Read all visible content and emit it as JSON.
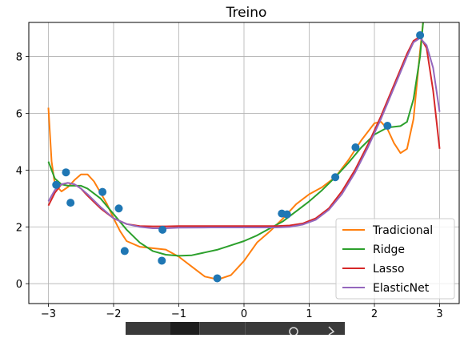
{
  "chart_data": {
    "type": "line",
    "title": "Treino",
    "xlabel": "",
    "ylabel": "",
    "xlim": [
      -3.3,
      3.3
    ],
    "ylim": [
      -0.7,
      9.2
    ],
    "xticks": [
      -3,
      -2,
      -1,
      0,
      1,
      2,
      3
    ],
    "xtick_labels": [
      "−3",
      "−2",
      "−1",
      "0",
      "1",
      "2",
      "3"
    ],
    "yticks": [
      0,
      2,
      4,
      6,
      8
    ],
    "ytick_labels": [
      "0",
      "2",
      "4",
      "6",
      "8"
    ],
    "grid": true,
    "legend_position": "lower-right",
    "scatter": {
      "color": "#1f77b4",
      "x": [
        -2.88,
        -2.73,
        -2.66,
        -2.17,
        -1.92,
        -1.83,
        -1.26,
        -1.25,
        -0.41,
        0.58,
        0.66,
        1.4,
        1.71,
        2.2,
        2.7
      ],
      "y": [
        3.48,
        3.92,
        2.85,
        3.23,
        2.65,
        1.15,
        0.81,
        1.9,
        0.19,
        2.47,
        2.44,
        3.75,
        4.8,
        5.56,
        8.75
      ]
    },
    "series": [
      {
        "name": "Tradicional",
        "color": "#ff7f0e",
        "x": [
          -3.0,
          -2.95,
          -2.9,
          -2.8,
          -2.7,
          -2.6,
          -2.5,
          -2.4,
          -2.3,
          -2.2,
          -2.1,
          -2.0,
          -1.9,
          -1.8,
          -1.6,
          -1.4,
          -1.2,
          -1.0,
          -0.8,
          -0.6,
          -0.4,
          -0.2,
          0.0,
          0.2,
          0.4,
          0.6,
          0.8,
          1.0,
          1.2,
          1.4,
          1.6,
          1.8,
          2.0,
          2.1,
          2.2,
          2.3,
          2.4,
          2.5,
          2.6,
          2.7,
          2.75
        ],
        "y": [
          6.2,
          4.3,
          3.5,
          3.25,
          3.4,
          3.65,
          3.85,
          3.85,
          3.6,
          3.2,
          2.8,
          2.3,
          1.85,
          1.5,
          1.3,
          1.25,
          1.2,
          0.95,
          0.6,
          0.25,
          0.15,
          0.3,
          0.8,
          1.45,
          1.85,
          2.3,
          2.8,
          3.15,
          3.4,
          3.75,
          4.35,
          5.05,
          5.65,
          5.7,
          5.45,
          4.95,
          4.6,
          4.75,
          5.8,
          8.2,
          9.3
        ]
      },
      {
        "name": "Ridge",
        "color": "#2ca02c",
        "x": [
          -3.0,
          -2.9,
          -2.8,
          -2.7,
          -2.6,
          -2.5,
          -2.4,
          -2.2,
          -2.0,
          -1.8,
          -1.6,
          -1.4,
          -1.2,
          -1.0,
          -0.8,
          -0.6,
          -0.4,
          -0.2,
          0.0,
          0.2,
          0.4,
          0.6,
          0.8,
          1.0,
          1.2,
          1.4,
          1.6,
          1.8,
          2.0,
          2.2,
          2.4,
          2.5,
          2.6,
          2.7,
          2.75
        ],
        "y": [
          4.3,
          3.7,
          3.5,
          3.45,
          3.45,
          3.45,
          3.35,
          3.0,
          2.45,
          1.9,
          1.45,
          1.15,
          1.02,
          0.98,
          1.0,
          1.1,
          1.2,
          1.35,
          1.5,
          1.7,
          1.95,
          2.2,
          2.55,
          2.9,
          3.3,
          3.75,
          4.25,
          4.8,
          5.25,
          5.5,
          5.55,
          5.7,
          6.5,
          8.0,
          9.3
        ]
      },
      {
        "name": "Lasso",
        "color": "#d62728",
        "x": [
          -3.0,
          -2.9,
          -2.8,
          -2.7,
          -2.6,
          -2.5,
          -2.4,
          -2.2,
          -2.0,
          -1.8,
          -1.6,
          -1.4,
          -1.2,
          -1.0,
          -0.5,
          0.0,
          0.5,
          0.7,
          0.9,
          1.1,
          1.3,
          1.5,
          1.7,
          1.9,
          2.1,
          2.3,
          2.5,
          2.6,
          2.7,
          2.8,
          2.9,
          3.0
        ],
        "y": [
          2.75,
          3.2,
          3.5,
          3.55,
          3.5,
          3.35,
          3.1,
          2.65,
          2.3,
          2.1,
          2.03,
          2.02,
          2.02,
          2.03,
          2.03,
          2.03,
          2.03,
          2.05,
          2.12,
          2.3,
          2.65,
          3.25,
          4.0,
          4.9,
          5.9,
          7.0,
          8.1,
          8.55,
          8.7,
          8.3,
          6.8,
          4.75
        ]
      },
      {
        "name": "ElasticNet",
        "color": "#9467bd",
        "x": [
          -3.0,
          -2.9,
          -2.8,
          -2.7,
          -2.6,
          -2.5,
          -2.4,
          -2.2,
          -2.0,
          -1.8,
          -1.6,
          -1.4,
          -1.2,
          -1.0,
          -0.5,
          0.0,
          0.5,
          0.7,
          0.9,
          1.1,
          1.3,
          1.5,
          1.7,
          1.9,
          2.1,
          2.3,
          2.5,
          2.6,
          2.7,
          2.8,
          2.9,
          3.0
        ],
        "y": [
          2.9,
          3.3,
          3.5,
          3.55,
          3.5,
          3.35,
          3.15,
          2.7,
          2.3,
          2.1,
          2.0,
          1.95,
          1.95,
          1.97,
          1.98,
          1.98,
          1.98,
          2.0,
          2.08,
          2.25,
          2.6,
          3.15,
          3.9,
          4.8,
          5.8,
          6.9,
          8.0,
          8.5,
          8.65,
          8.4,
          7.6,
          6.05
        ]
      }
    ]
  },
  "toolbar": {
    "search_icon": "magnifier-icon",
    "arrow_icon": "right-arrow-icon"
  }
}
